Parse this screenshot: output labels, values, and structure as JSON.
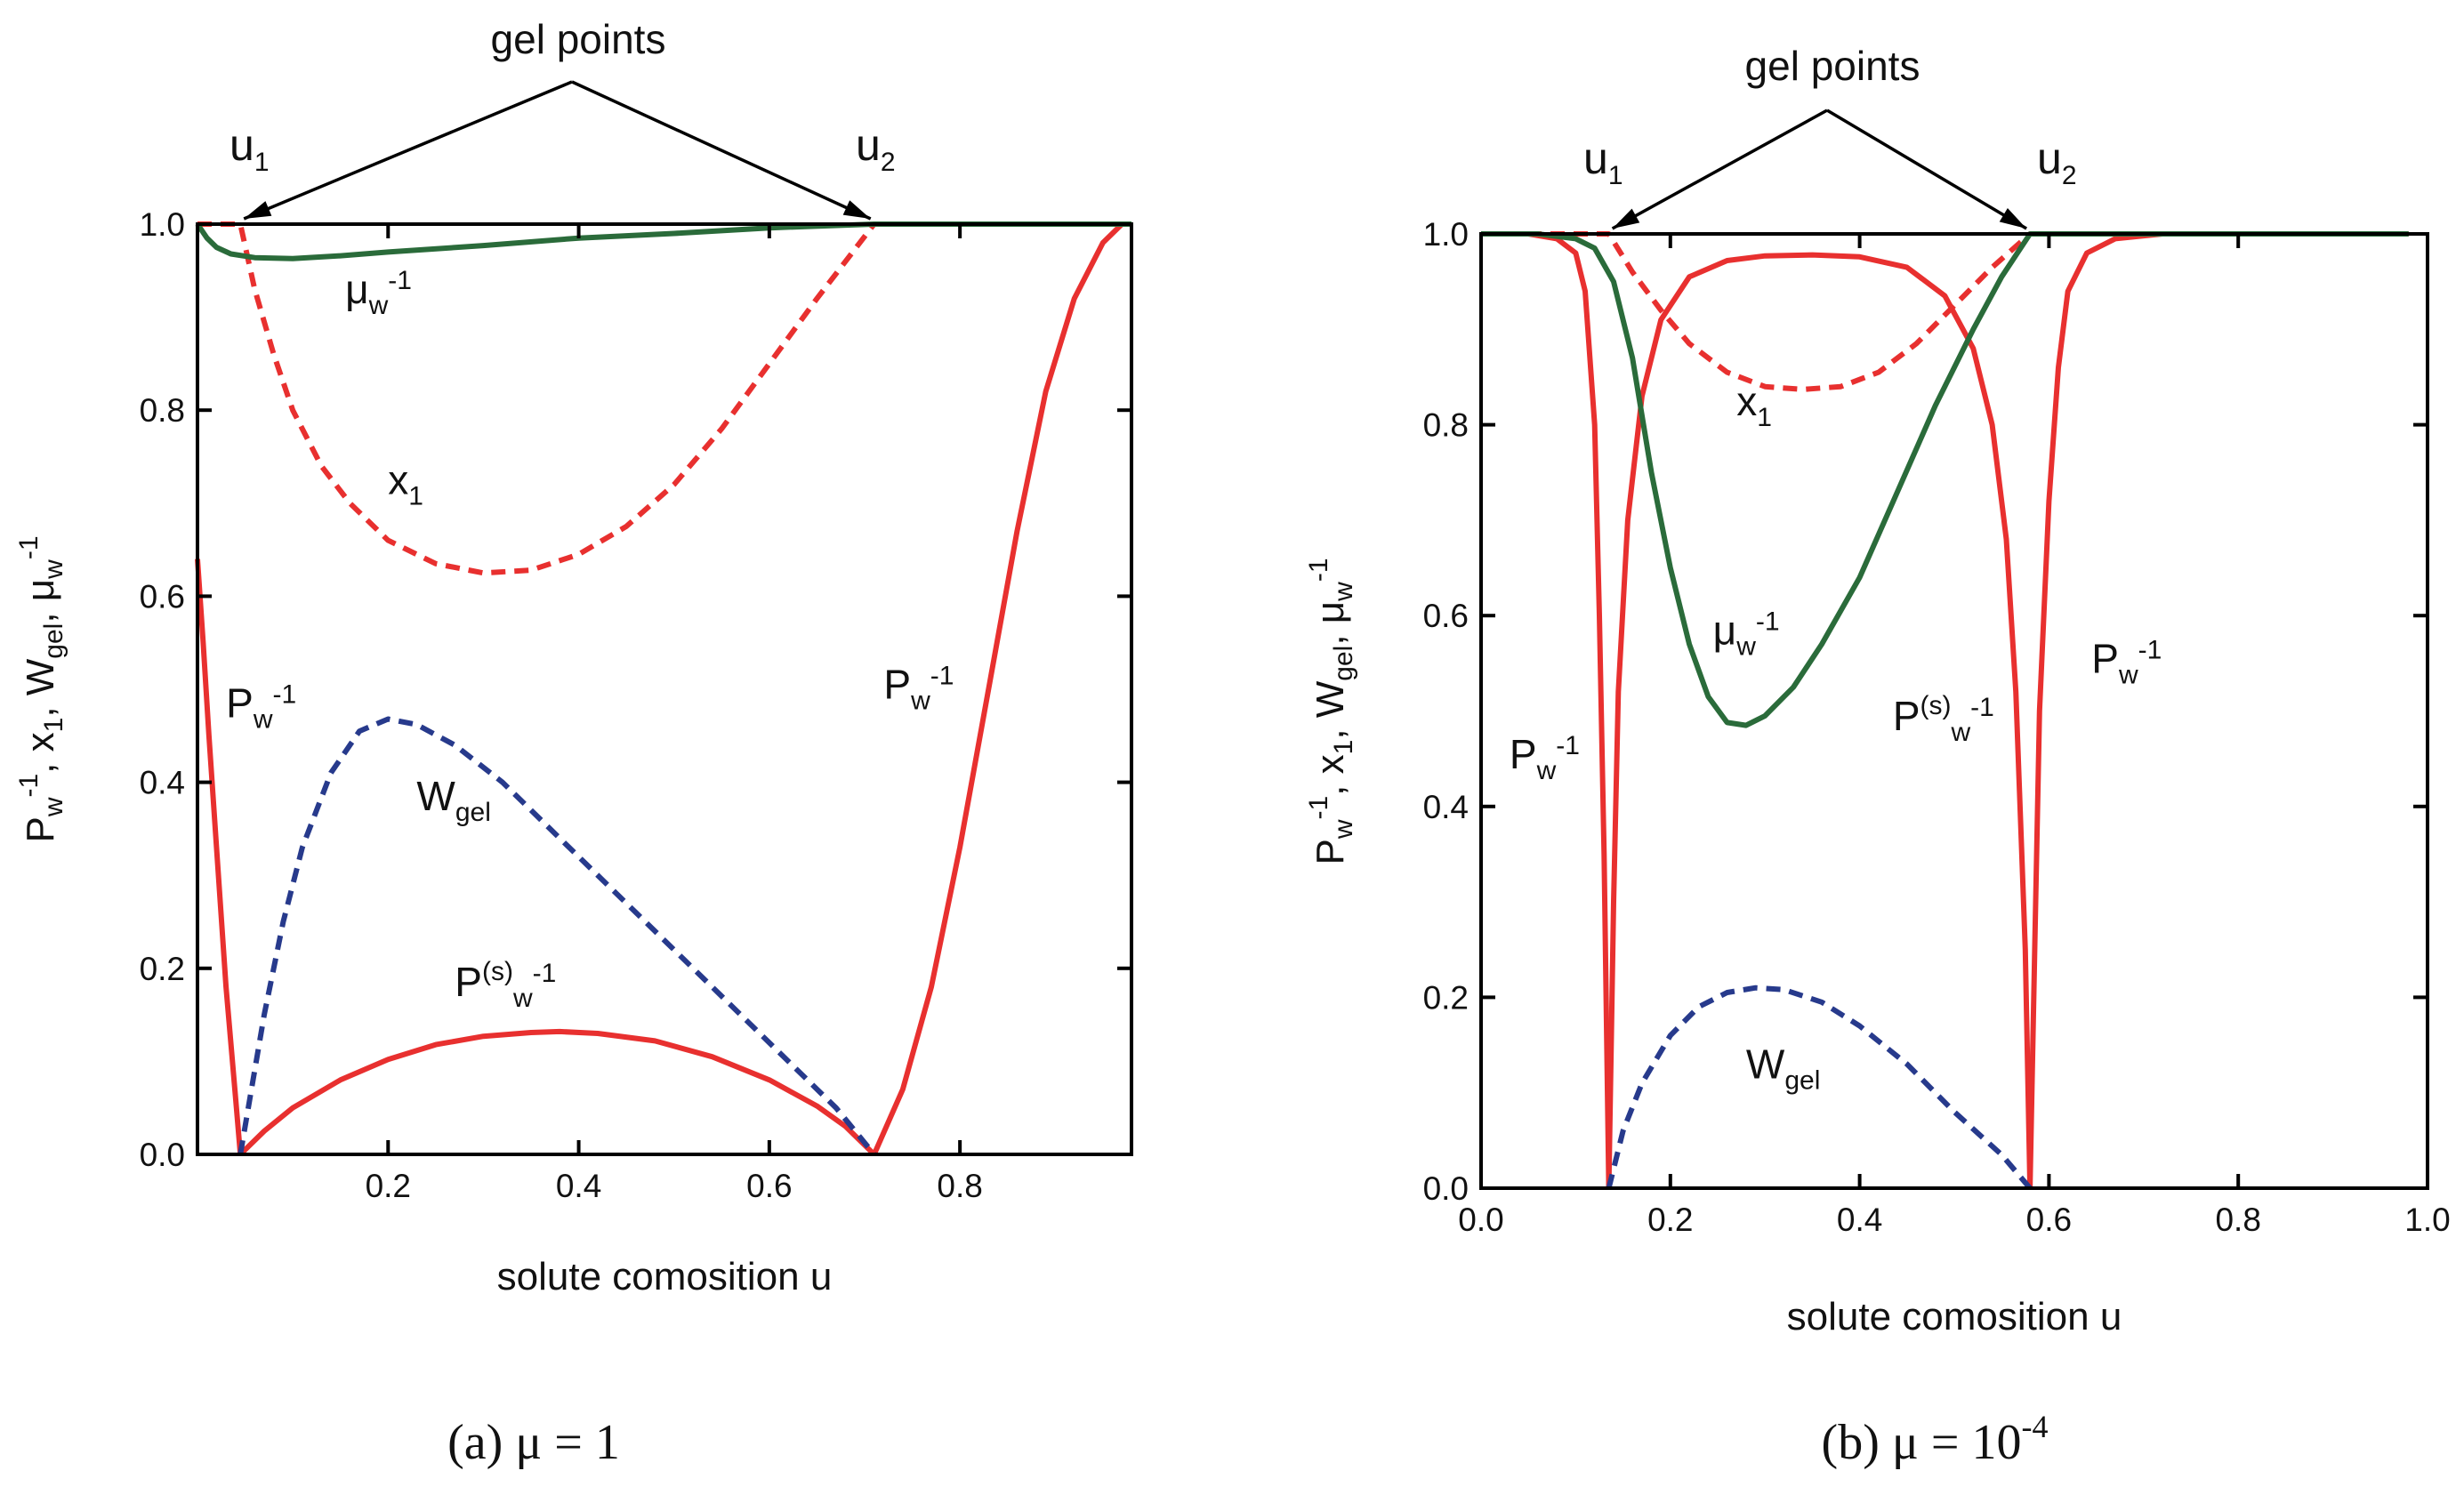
{
  "colors": {
    "red": "#e8302f",
    "green": "#2a6b3a",
    "blue": "#273a8c"
  },
  "chart_data": [
    {
      "type": "line",
      "caption": "(a)  μ = 1",
      "xlabel": "solute comosition  u",
      "ylabel": "P_w^-1, x_1, W_gel, μ_w^-1",
      "xlim": [
        0.0,
        0.98
      ],
      "ylim": [
        0.0,
        1.0
      ],
      "x_ticks": [
        "0.2",
        "0.4",
        "0.6",
        "0.8"
      ],
      "y_ticks": [
        "0.0",
        "0.2",
        "0.4",
        "0.6",
        "0.8",
        "1.0"
      ],
      "gel_points": {
        "label": "gel points",
        "u1": 0.045,
        "u2": 0.71,
        "u1_label": "u",
        "u1_sub": "1",
        "u2_label": "u",
        "u2_sub": "2"
      },
      "series": [
        {
          "name": "P_w^-1",
          "color": "red",
          "dash": false,
          "points": [
            [
              0.0,
              0.64
            ],
            [
              0.006,
              0.55
            ],
            [
              0.012,
              0.45
            ],
            [
              0.02,
              0.33
            ],
            [
              0.03,
              0.18
            ],
            [
              0.04,
              0.06
            ],
            [
              0.045,
              0.0
            ]
          ]
        },
        {
          "name": "P_w^-1",
          "color": "red",
          "dash": false,
          "points": [
            [
              0.71,
              0.0
            ],
            [
              0.74,
              0.07
            ],
            [
              0.77,
              0.18
            ],
            [
              0.8,
              0.33
            ],
            [
              0.83,
              0.5
            ],
            [
              0.86,
              0.67
            ],
            [
              0.89,
              0.82
            ],
            [
              0.92,
              0.92
            ],
            [
              0.95,
              0.98
            ],
            [
              0.97,
              1.0
            ]
          ]
        },
        {
          "name": "P(s)_w^-1",
          "color": "red",
          "dash": false,
          "points": [
            [
              0.045,
              0.0
            ],
            [
              0.07,
              0.025
            ],
            [
              0.1,
              0.05
            ],
            [
              0.15,
              0.08
            ],
            [
              0.2,
              0.102
            ],
            [
              0.25,
              0.118
            ],
            [
              0.3,
              0.127
            ],
            [
              0.35,
              0.131
            ],
            [
              0.38,
              0.132
            ],
            [
              0.42,
              0.13
            ],
            [
              0.48,
              0.122
            ],
            [
              0.54,
              0.105
            ],
            [
              0.6,
              0.08
            ],
            [
              0.65,
              0.052
            ],
            [
              0.68,
              0.03
            ],
            [
              0.71,
              0.0
            ]
          ]
        },
        {
          "name": "x_1",
          "color": "red",
          "dash": true,
          "points": [
            [
              0.0,
              1.0
            ],
            [
              0.045,
              1.0
            ],
            [
              0.06,
              0.93
            ],
            [
              0.08,
              0.86
            ],
            [
              0.1,
              0.8
            ],
            [
              0.13,
              0.74
            ],
            [
              0.16,
              0.7
            ],
            [
              0.2,
              0.66
            ],
            [
              0.25,
              0.635
            ],
            [
              0.3,
              0.625
            ],
            [
              0.35,
              0.628
            ],
            [
              0.4,
              0.645
            ],
            [
              0.45,
              0.675
            ],
            [
              0.5,
              0.72
            ],
            [
              0.55,
              0.78
            ],
            [
              0.6,
              0.85
            ],
            [
              0.65,
              0.92
            ],
            [
              0.68,
              0.96
            ],
            [
              0.71,
              1.0
            ],
            [
              0.98,
              1.0
            ]
          ]
        },
        {
          "name": "W_gel",
          "color": "blue",
          "dash": true,
          "points": [
            [
              0.045,
              0.0
            ],
            [
              0.055,
              0.06
            ],
            [
              0.07,
              0.15
            ],
            [
              0.09,
              0.25
            ],
            [
              0.11,
              0.33
            ],
            [
              0.14,
              0.41
            ],
            [
              0.17,
              0.455
            ],
            [
              0.2,
              0.468
            ],
            [
              0.23,
              0.462
            ],
            [
              0.27,
              0.44
            ],
            [
              0.32,
              0.4
            ],
            [
              0.38,
              0.34
            ],
            [
              0.44,
              0.28
            ],
            [
              0.5,
              0.22
            ],
            [
              0.56,
              0.16
            ],
            [
              0.62,
              0.1
            ],
            [
              0.67,
              0.05
            ],
            [
              0.71,
              0.0
            ]
          ]
        },
        {
          "name": "μ_w^-1",
          "color": "green",
          "dash": false,
          "points": [
            [
              0.0,
              1.0
            ],
            [
              0.01,
              0.985
            ],
            [
              0.02,
              0.975
            ],
            [
              0.035,
              0.968
            ],
            [
              0.06,
              0.964
            ],
            [
              0.1,
              0.963
            ],
            [
              0.15,
              0.966
            ],
            [
              0.2,
              0.97
            ],
            [
              0.3,
              0.977
            ],
            [
              0.4,
              0.985
            ],
            [
              0.5,
              0.99
            ],
            [
              0.6,
              0.996
            ],
            [
              0.71,
              1.0
            ],
            [
              0.98,
              1.0
            ]
          ]
        }
      ],
      "labels": [
        {
          "text": "x",
          "sub": "1",
          "u": 0.2,
          "v": 0.71
        },
        {
          "text": "μ",
          "sub": "w",
          "sup": "-1",
          "u": 0.155,
          "v": 0.915
        },
        {
          "text": "P",
          "sub": "w",
          "sup": "-1",
          "u": 0.03,
          "v": 0.47
        },
        {
          "text": "P",
          "sub": "w",
          "sup": "-1",
          "u": 0.72,
          "v": 0.49
        },
        {
          "text": "W",
          "sub": "gel",
          "u": 0.23,
          "v": 0.37
        },
        {
          "text": "P",
          "mid": "(s)",
          "sub": "w",
          "sup": "-1",
          "u": 0.27,
          "v": 0.17
        }
      ]
    },
    {
      "type": "line",
      "caption_prefix": "(b)  μ = 10",
      "caption_sup": "-4",
      "xlabel": "solute comosition  u",
      "ylabel": "P_w^-1, x_1, W_gel, μ_w^-1",
      "xlim": [
        0.0,
        1.0
      ],
      "ylim": [
        0.0,
        1.0
      ],
      "x_ticks": [
        "0.0",
        "0.2",
        "0.4",
        "0.6",
        "0.8",
        "1.0"
      ],
      "y_ticks": [
        "0.0",
        "0.2",
        "0.4",
        "0.6",
        "0.8",
        "1.0"
      ],
      "gel_points": {
        "label": "gel points",
        "u1": 0.135,
        "u2": 0.58,
        "u1_label": "u",
        "u1_sub": "1",
        "u2_label": "u",
        "u2_sub": "2"
      },
      "series": [
        {
          "name": "P_w^-1",
          "color": "red",
          "dash": false,
          "points": [
            [
              0.0,
              1.0
            ],
            [
              0.05,
              1.0
            ],
            [
              0.08,
              0.995
            ],
            [
              0.1,
              0.98
            ],
            [
              0.11,
              0.94
            ],
            [
              0.12,
              0.8
            ],
            [
              0.125,
              0.6
            ],
            [
              0.13,
              0.35
            ],
            [
              0.135,
              0.0
            ]
          ]
        },
        {
          "name": "P_w^-1",
          "color": "red",
          "dash": false,
          "points": [
            [
              0.58,
              0.0
            ],
            [
              0.585,
              0.25
            ],
            [
              0.59,
              0.5
            ],
            [
              0.6,
              0.72
            ],
            [
              0.61,
              0.86
            ],
            [
              0.62,
              0.94
            ],
            [
              0.64,
              0.98
            ],
            [
              0.67,
              0.995
            ],
            [
              0.72,
              1.0
            ],
            [
              0.98,
              1.0
            ]
          ]
        },
        {
          "name": "P(s)_w^-1",
          "color": "red",
          "dash": false,
          "points": [
            [
              0.135,
              0.0
            ],
            [
              0.14,
              0.3
            ],
            [
              0.145,
              0.52
            ],
            [
              0.155,
              0.7
            ],
            [
              0.17,
              0.83
            ],
            [
              0.19,
              0.91
            ],
            [
              0.22,
              0.955
            ],
            [
              0.26,
              0.972
            ],
            [
              0.3,
              0.977
            ],
            [
              0.35,
              0.978
            ],
            [
              0.4,
              0.976
            ],
            [
              0.45,
              0.965
            ],
            [
              0.49,
              0.935
            ],
            [
              0.52,
              0.88
            ],
            [
              0.54,
              0.8
            ],
            [
              0.555,
              0.68
            ],
            [
              0.565,
              0.52
            ],
            [
              0.575,
              0.25
            ],
            [
              0.58,
              0.0
            ]
          ]
        },
        {
          "name": "x_1",
          "color": "red",
          "dash": true,
          "points": [
            [
              0.0,
              1.0
            ],
            [
              0.135,
              1.0
            ],
            [
              0.16,
              0.96
            ],
            [
              0.19,
              0.92
            ],
            [
              0.22,
              0.885
            ],
            [
              0.26,
              0.855
            ],
            [
              0.3,
              0.84
            ],
            [
              0.34,
              0.837
            ],
            [
              0.38,
              0.84
            ],
            [
              0.42,
              0.855
            ],
            [
              0.46,
              0.885
            ],
            [
              0.5,
              0.925
            ],
            [
              0.54,
              0.965
            ],
            [
              0.58,
              1.0
            ],
            [
              0.98,
              1.0
            ]
          ]
        },
        {
          "name": "W_gel",
          "color": "blue",
          "dash": true,
          "points": [
            [
              0.135,
              0.0
            ],
            [
              0.15,
              0.06
            ],
            [
              0.17,
              0.11
            ],
            [
              0.2,
              0.16
            ],
            [
              0.23,
              0.19
            ],
            [
              0.26,
              0.205
            ],
            [
              0.29,
              0.21
            ],
            [
              0.32,
              0.208
            ],
            [
              0.36,
              0.195
            ],
            [
              0.4,
              0.17
            ],
            [
              0.45,
              0.13
            ],
            [
              0.5,
              0.08
            ],
            [
              0.55,
              0.035
            ],
            [
              0.58,
              0.0
            ]
          ]
        },
        {
          "name": "μ_w^-1",
          "color": "green",
          "dash": false,
          "points": [
            [
              0.0,
              1.0
            ],
            [
              0.06,
              1.0
            ],
            [
              0.1,
              0.995
            ],
            [
              0.12,
              0.985
            ],
            [
              0.14,
              0.95
            ],
            [
              0.16,
              0.87
            ],
            [
              0.18,
              0.75
            ],
            [
              0.2,
              0.65
            ],
            [
              0.22,
              0.57
            ],
            [
              0.24,
              0.515
            ],
            [
              0.26,
              0.488
            ],
            [
              0.28,
              0.485
            ],
            [
              0.3,
              0.495
            ],
            [
              0.33,
              0.525
            ],
            [
              0.36,
              0.57
            ],
            [
              0.4,
              0.64
            ],
            [
              0.44,
              0.73
            ],
            [
              0.48,
              0.82
            ],
            [
              0.52,
              0.9
            ],
            [
              0.55,
              0.955
            ],
            [
              0.58,
              1.0
            ],
            [
              0.98,
              1.0
            ]
          ]
        }
      ],
      "labels": [
        {
          "text": "x",
          "sub": "1",
          "u": 0.27,
          "v": 0.81
        },
        {
          "text": "μ",
          "sub": "w",
          "sup": "-1",
          "u": 0.245,
          "v": 0.57
        },
        {
          "text": "P",
          "sub": "w",
          "sup": "-1",
          "u": 0.03,
          "v": 0.44
        },
        {
          "text": "P",
          "sub": "w",
          "sup": "-1",
          "u": 0.645,
          "v": 0.54
        },
        {
          "text": "P",
          "mid": "(s)",
          "sub": "w",
          "sup": "-1",
          "u": 0.435,
          "v": 0.48
        },
        {
          "text": "W",
          "sub": "gel",
          "u": 0.28,
          "v": 0.115
        }
      ]
    }
  ]
}
